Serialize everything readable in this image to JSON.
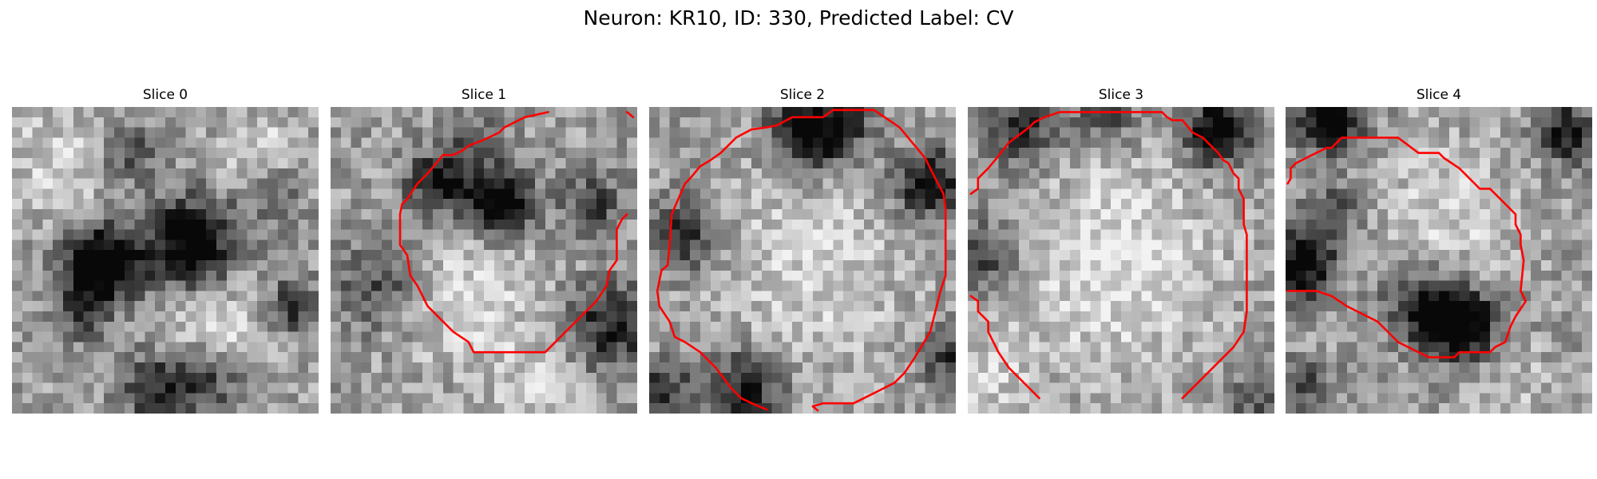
{
  "figure": {
    "title": "Neuron: KR10, ID: 330, Predicted Label: CV"
  },
  "colors": {
    "contour": "#ff0000",
    "background": "#ffffff"
  },
  "grid_size": 30,
  "slices": [
    {
      "title": "Slice 0",
      "dark_blobs": [
        [
          8,
          15,
          2.6,
          0.9
        ],
        [
          17,
          13,
          3.2,
          0.75
        ],
        [
          14,
          27,
          2.5,
          0.5
        ],
        [
          19,
          26,
          2.2,
          0.4
        ],
        [
          11,
          4,
          2,
          0.35
        ],
        [
          25,
          8,
          2,
          0.3
        ],
        [
          27,
          19,
          2,
          0.45
        ],
        [
          6,
          20,
          2,
          0.3
        ]
      ],
      "light_blobs": [
        [
          20,
          21,
          4,
          0.25
        ],
        [
          4,
          5,
          4,
          0.2
        ],
        [
          24,
          4,
          3,
          0.2
        ]
      ],
      "seed": 11,
      "contours": []
    },
    {
      "title": "Slice 1",
      "dark_blobs": [
        [
          16,
          9,
          2.3,
          0.75
        ],
        [
          10,
          7,
          2.2,
          0.55
        ],
        [
          27,
          21,
          3,
          0.5
        ],
        [
          4,
          17,
          3,
          0.35
        ],
        [
          25,
          9,
          2,
          0.4
        ],
        [
          14,
          3,
          2,
          0.3
        ]
      ],
      "light_blobs": [
        [
          13,
          18,
          5,
          0.22
        ],
        [
          20,
          27,
          3,
          0.2
        ]
      ],
      "seed": 23,
      "contours": [
        [
          [
            21.3,
            0.5
          ],
          [
            19,
            1
          ],
          [
            17,
            2
          ],
          [
            16.5,
            2.5
          ],
          [
            15,
            3.2
          ],
          [
            13.5,
            3.8
          ],
          [
            13,
            4.2
          ],
          [
            12,
            4.7
          ],
          [
            11,
            4.7
          ],
          [
            9.5,
            6.5
          ],
          [
            8.5,
            7.5
          ],
          [
            7.5,
            9
          ],
          [
            7,
            9.5
          ],
          [
            6.8,
            10.5
          ],
          [
            6.8,
            13.5
          ],
          [
            7.5,
            14.5
          ],
          [
            7.8,
            16.5
          ],
          [
            8.5,
            17.5
          ],
          [
            9.5,
            19.5
          ],
          [
            12,
            22
          ],
          [
            13.5,
            23
          ],
          [
            14,
            24
          ],
          [
            21,
            24
          ],
          [
            23,
            22
          ],
          [
            26,
            19
          ],
          [
            27,
            17.5
          ],
          [
            27.3,
            16
          ],
          [
            28,
            15
          ],
          [
            28,
            12
          ],
          [
            28.5,
            11
          ],
          [
            29,
            10.5
          ]
        ],
        [
          [
            29,
            0.5
          ],
          [
            29.6,
            1
          ]
        ]
      ]
    },
    {
      "title": "Slice 2",
      "dark_blobs": [
        [
          15,
          2,
          2.5,
          0.75
        ],
        [
          27,
          7,
          2.5,
          0.6
        ],
        [
          9,
          27,
          2.5,
          0.55
        ],
        [
          3,
          12,
          2.5,
          0.5
        ],
        [
          29,
          24,
          2,
          0.45
        ],
        [
          19,
          1,
          2,
          0.35
        ],
        [
          1,
          27,
          2,
          0.4
        ]
      ],
      "light_blobs": [
        [
          15,
          15,
          7,
          0.2
        ]
      ],
      "seed": 37,
      "contours": [
        [
          [
            11.5,
            29.6
          ],
          [
            10.5,
            29.2
          ],
          [
            9,
            28.5
          ],
          [
            8,
            27.5
          ],
          [
            6.5,
            25.5
          ],
          [
            5,
            24
          ],
          [
            3.5,
            23
          ],
          [
            2.5,
            22.5
          ],
          [
            2,
            21
          ],
          [
            1,
            19.5
          ],
          [
            0.8,
            18
          ],
          [
            1.2,
            16
          ],
          [
            1.8,
            15.5
          ],
          [
            2,
            13.5
          ],
          [
            2.2,
            10.5
          ],
          [
            3.5,
            7.5
          ],
          [
            4,
            7
          ],
          [
            5,
            5.8
          ],
          [
            6,
            5.2
          ],
          [
            7,
            4.5
          ],
          [
            8.5,
            3
          ],
          [
            10,
            2.2
          ],
          [
            11.5,
            2
          ],
          [
            12.5,
            1.8
          ],
          [
            14,
            1
          ],
          [
            17,
            1
          ],
          [
            18,
            0.3
          ],
          [
            22,
            0.3
          ],
          [
            24.5,
            2
          ],
          [
            27,
            5
          ],
          [
            27.5,
            6
          ],
          [
            28,
            7
          ],
          [
            28.8,
            8.5
          ],
          [
            29,
            10
          ],
          [
            29,
            16.5
          ],
          [
            28.5,
            18
          ],
          [
            28,
            20
          ],
          [
            27.5,
            22
          ],
          [
            26,
            24.5
          ],
          [
            25,
            26
          ],
          [
            24,
            27
          ],
          [
            23,
            27.5
          ],
          [
            22,
            28
          ],
          [
            21,
            28.5
          ],
          [
            20,
            29
          ],
          [
            17,
            29
          ],
          [
            16,
            29.3
          ],
          [
            16.5,
            29.7
          ]
        ]
      ]
    },
    {
      "title": "Slice 3",
      "dark_blobs": [
        [
          24,
          2,
          2.2,
          0.75
        ],
        [
          5,
          2,
          2.5,
          0.45
        ],
        [
          1,
          14,
          2.5,
          0.4
        ],
        [
          13,
          0.5,
          2,
          0.35
        ],
        [
          28,
          28,
          2,
          0.3
        ]
      ],
      "light_blobs": [
        [
          14,
          15,
          7,
          0.28
        ],
        [
          1,
          26,
          3,
          0.2
        ]
      ],
      "seed": 53,
      "contours": [
        [
          [
            0.3,
            8.5
          ],
          [
            1,
            8
          ],
          [
            1,
            7
          ],
          [
            2,
            6
          ],
          [
            3,
            4.8
          ],
          [
            4,
            3.5
          ],
          [
            6,
            2
          ],
          [
            6.5,
            1.5
          ],
          [
            7.5,
            1
          ],
          [
            9,
            0.5
          ],
          [
            11,
            0.5
          ],
          [
            19,
            0.5
          ],
          [
            19.5,
            1
          ],
          [
            20,
            1.3
          ],
          [
            21,
            1.3
          ],
          [
            22,
            2.5
          ],
          [
            23,
            3
          ],
          [
            24,
            4
          ],
          [
            24.5,
            4.5
          ],
          [
            25,
            5.2
          ],
          [
            25.5,
            5.5
          ],
          [
            26,
            6.5
          ],
          [
            26.5,
            7
          ],
          [
            26.5,
            8
          ],
          [
            27,
            9
          ],
          [
            27,
            11.5
          ],
          [
            27.3,
            12.5
          ],
          [
            27.3,
            15
          ],
          [
            27.3,
            20
          ],
          [
            27,
            22
          ],
          [
            26,
            23.5
          ],
          [
            25,
            24.5
          ],
          [
            24,
            25.5
          ],
          [
            23,
            26.5
          ],
          [
            21.5,
            28
          ],
          [
            21,
            28.5
          ]
        ],
        [
          [
            0.3,
            18.5
          ],
          [
            1,
            19
          ],
          [
            1,
            20
          ],
          [
            2,
            21
          ],
          [
            2,
            22
          ],
          [
            3,
            24
          ],
          [
            4,
            25.5
          ],
          [
            6,
            27.5
          ],
          [
            7,
            28.5
          ]
        ]
      ]
    },
    {
      "title": "Slice 4",
      "dark_blobs": [
        [
          4,
          0.5,
          2.2,
          0.75
        ],
        [
          27,
          2,
          2,
          0.6
        ],
        [
          1,
          15,
          2.5,
          0.65
        ],
        [
          13,
          19,
          2.5,
          0.55
        ],
        [
          17,
          21,
          2.5,
          0.75
        ],
        [
          4,
          10,
          2,
          0.35
        ],
        [
          1,
          27,
          2,
          0.35
        ]
      ],
      "light_blobs": [
        [
          15,
          10,
          5,
          0.2
        ],
        [
          21,
          26,
          3,
          0.15
        ]
      ],
      "seed": 71,
      "contours": [
        [
          [
            0.2,
            7.5
          ],
          [
            0.5,
            7
          ],
          [
            0.5,
            6
          ],
          [
            1,
            5.5
          ],
          [
            2,
            5
          ],
          [
            3,
            4.5
          ],
          [
            4,
            4
          ],
          [
            4.5,
            4
          ],
          [
            5.5,
            3
          ],
          [
            7,
            3
          ],
          [
            11,
            3
          ],
          [
            13,
            4.5
          ],
          [
            15,
            4.5
          ],
          [
            15.5,
            5
          ],
          [
            17,
            6
          ],
          [
            18,
            7
          ],
          [
            18.5,
            7.5
          ],
          [
            19,
            8
          ],
          [
            20,
            8
          ],
          [
            20.5,
            8.5
          ],
          [
            21,
            9
          ],
          [
            22,
            10
          ],
          [
            22.5,
            10.5
          ],
          [
            22.5,
            11.5
          ],
          [
            23,
            12.5
          ],
          [
            23,
            13.5
          ],
          [
            23.3,
            15
          ],
          [
            23,
            18
          ],
          [
            23.5,
            19
          ],
          [
            22.5,
            20.5
          ],
          [
            22,
            21.5
          ],
          [
            21.5,
            23
          ],
          [
            20.5,
            23.5
          ],
          [
            20,
            24
          ],
          [
            17,
            24
          ],
          [
            16.5,
            24.5
          ],
          [
            14,
            24.5
          ],
          [
            13,
            24
          ],
          [
            12,
            23.5
          ],
          [
            11,
            23
          ],
          [
            10.5,
            22.5
          ],
          [
            9,
            21
          ],
          [
            7,
            20
          ],
          [
            6,
            19.5
          ],
          [
            4.5,
            18.5
          ],
          [
            3,
            18
          ],
          [
            0.2,
            18
          ]
        ]
      ]
    }
  ]
}
